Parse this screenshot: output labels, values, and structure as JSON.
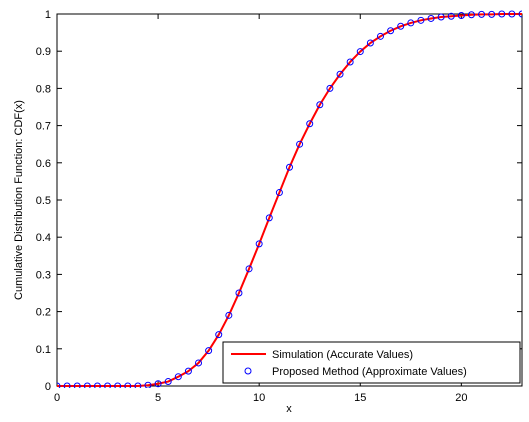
{
  "chart_data": {
    "type": "line",
    "title": "",
    "xlabel": "x",
    "ylabel": "Cumulative Distribution Function: CDF(x)",
    "xlim": [
      0,
      23
    ],
    "ylim": [
      0,
      1
    ],
    "xticks": [
      0,
      5,
      10,
      15,
      20
    ],
    "xtick_labels": [
      "0",
      "5",
      "10",
      "15",
      "20"
    ],
    "yticks": [
      0,
      0.1,
      0.2,
      0.3,
      0.4,
      0.5,
      0.6,
      0.7,
      0.8,
      0.9,
      1
    ],
    "ytick_labels": [
      "0",
      "0.1",
      "0.2",
      "0.3",
      "0.4",
      "0.5",
      "0.6",
      "0.7",
      "0.8",
      "0.9",
      "1"
    ],
    "grid": false,
    "legend_position": "bottom-right",
    "series": [
      {
        "name": "Simulation (Accurate Values)",
        "style": "line",
        "color": "#ff0000",
        "x": [
          0,
          4,
          4.5,
          5,
          5.5,
          6,
          6.5,
          7,
          7.5,
          8,
          8.5,
          9,
          9.5,
          10,
          10.5,
          11,
          11.5,
          12,
          12.5,
          13,
          13.5,
          14,
          14.5,
          15,
          15.5,
          16,
          16.5,
          17,
          17.5,
          18,
          18.5,
          19,
          19.5,
          20,
          20.5,
          21,
          21.5,
          22,
          22.5,
          23
        ],
        "y": [
          0.0,
          0.0,
          0.002,
          0.006,
          0.012,
          0.025,
          0.04,
          0.062,
          0.095,
          0.138,
          0.19,
          0.25,
          0.315,
          0.382,
          0.452,
          0.52,
          0.588,
          0.65,
          0.705,
          0.756,
          0.8,
          0.838,
          0.871,
          0.899,
          0.922,
          0.94,
          0.955,
          0.967,
          0.976,
          0.983,
          0.988,
          0.992,
          0.994,
          0.996,
          0.998,
          0.999,
          0.999,
          1.0,
          1.0,
          1.0
        ]
      },
      {
        "name": "Proposed Method (Approximate Values)",
        "style": "marker",
        "color": "#0000ff",
        "x": [
          0,
          0.5,
          1,
          1.5,
          2,
          2.5,
          3,
          3.5,
          4,
          4.5,
          5,
          5.5,
          6,
          6.5,
          7,
          7.5,
          8,
          8.5,
          9,
          9.5,
          10,
          10.5,
          11,
          11.5,
          12,
          12.5,
          13,
          13.5,
          14,
          14.5,
          15,
          15.5,
          16,
          16.5,
          17,
          17.5,
          18,
          18.5,
          19,
          19.5,
          20,
          20.5,
          21,
          21.5,
          22,
          22.5,
          23
        ],
        "y": [
          0.0,
          0.0,
          0.0,
          0.0,
          0.0,
          0.0,
          0.0,
          0.0,
          0.0,
          0.002,
          0.006,
          0.012,
          0.025,
          0.04,
          0.062,
          0.095,
          0.138,
          0.19,
          0.25,
          0.315,
          0.382,
          0.452,
          0.52,
          0.588,
          0.65,
          0.705,
          0.756,
          0.8,
          0.838,
          0.871,
          0.899,
          0.922,
          0.94,
          0.955,
          0.967,
          0.976,
          0.983,
          0.988,
          0.992,
          0.994,
          0.996,
          0.998,
          0.999,
          0.999,
          1.0,
          1.0,
          1.0
        ]
      }
    ]
  }
}
